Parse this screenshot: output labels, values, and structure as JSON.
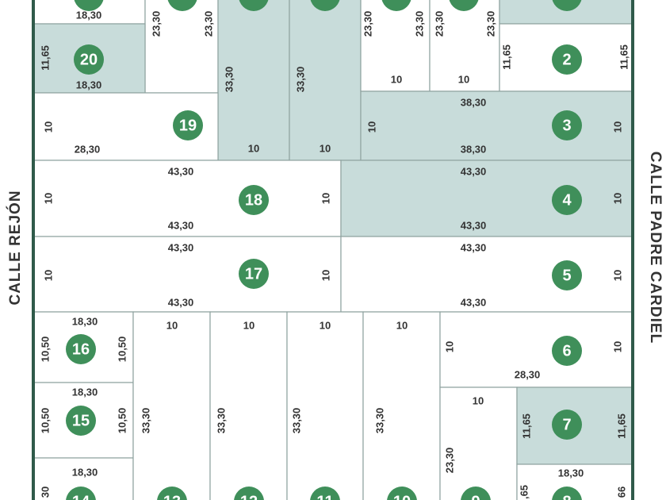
{
  "streets": {
    "left": "CALLE REJÓN",
    "right": "CALLE PADRE CARDIEL"
  },
  "lots": [
    {
      "shaded": false,
      "dims": [
        "18,30"
      ]
    },
    {
      "shaded": false,
      "dims": [
        "23,30",
        "23,30"
      ]
    },
    {
      "shaded": true,
      "dims": [
        "33,30",
        "10"
      ]
    },
    {
      "shaded": true,
      "dims": [
        "33,30",
        "10"
      ]
    },
    {
      "shaded": false,
      "dims": [
        "23,30",
        "23,30",
        "10"
      ]
    },
    {
      "shaded": false,
      "dims": [
        "23,30",
        "23,30",
        "10"
      ]
    },
    {
      "shaded": true,
      "dims": []
    },
    {
      "number": "20",
      "shaded": true,
      "dims": [
        "11,65",
        "18,30"
      ]
    },
    {
      "number": "19",
      "shaded": false,
      "dims": [
        "10",
        "28,30"
      ]
    },
    {
      "number": "2",
      "shaded": false,
      "dims": [
        "11,65",
        "11,65"
      ]
    },
    {
      "number": "3",
      "shaded": true,
      "dims": [
        "38,30",
        "38,30",
        "10",
        "10"
      ]
    },
    {
      "number": "18",
      "shaded": false,
      "dims": [
        "43,30",
        "43,30",
        "10",
        "10"
      ]
    },
    {
      "number": "4",
      "shaded": true,
      "dims": [
        "43,30",
        "43,30",
        "10"
      ]
    },
    {
      "number": "17",
      "shaded": false,
      "dims": [
        "43,30",
        "43,30",
        "10",
        "10"
      ]
    },
    {
      "number": "5",
      "shaded": false,
      "dims": [
        "43,30",
        "43,30",
        "10"
      ]
    },
    {
      "number": "16",
      "shaded": false,
      "dims": [
        "18,30",
        "10,50",
        "10,50"
      ]
    },
    {
      "number": "15",
      "shaded": false,
      "dims": [
        "18,30",
        "10,50",
        "10,50"
      ]
    },
    {
      "number": "14",
      "shaded": false,
      "dims": [
        "18,30",
        "30"
      ]
    },
    {
      "number": "13",
      "shaded": false,
      "dims": [
        "10",
        "33,30"
      ]
    },
    {
      "number": "12",
      "shaded": false,
      "dims": [
        "10",
        "33,30"
      ]
    },
    {
      "number": "11",
      "shaded": false,
      "dims": [
        "10",
        "33,30"
      ]
    },
    {
      "number": "10",
      "shaded": false,
      "dims": [
        "10",
        "33,30"
      ]
    },
    {
      "number": "6",
      "shaded": false,
      "dims": [
        "10",
        "10",
        "28,30"
      ]
    },
    {
      "number": "9",
      "shaded": false,
      "dims": [
        "10",
        "23,30"
      ]
    },
    {
      "number": "7",
      "shaded": true,
      "dims": [
        "11,65",
        "11,65"
      ]
    },
    {
      "number": "8",
      "shaded": false,
      "dims": [
        "18,30",
        ",65",
        "66"
      ]
    }
  ]
}
